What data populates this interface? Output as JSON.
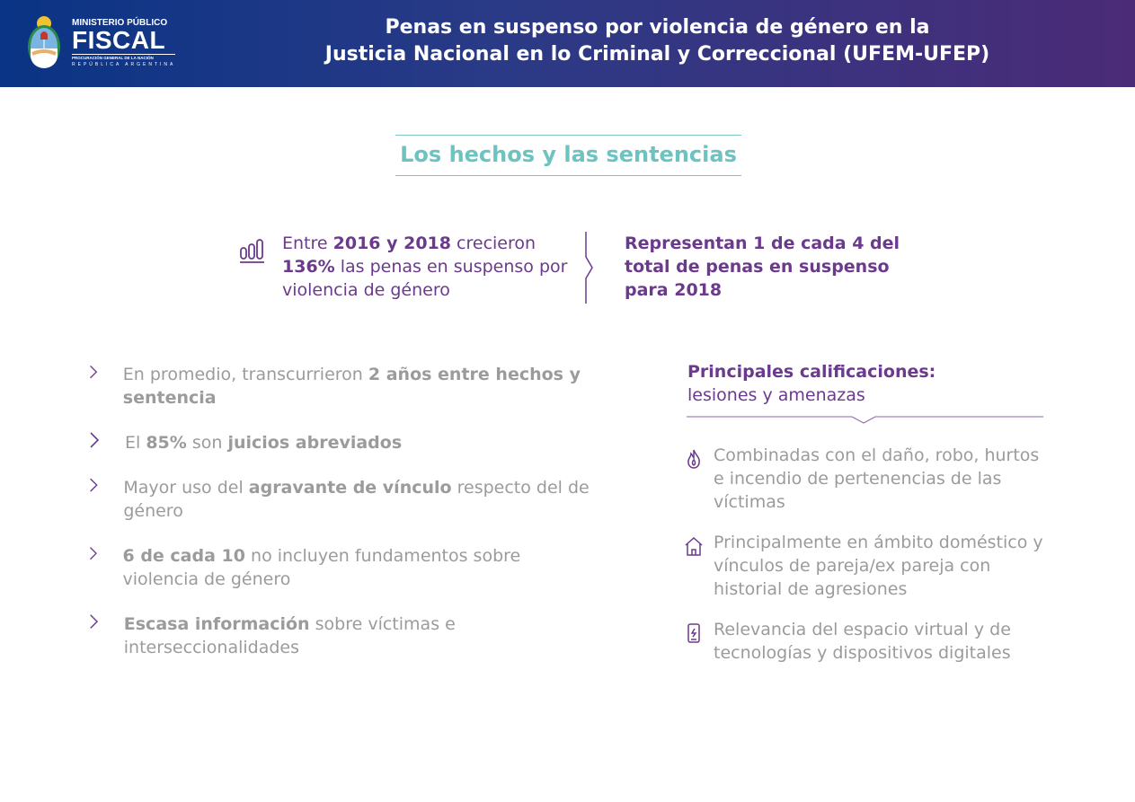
{
  "header": {
    "logo": {
      "line1": "MINISTERIO PÚBLICO",
      "line2": "FISCAL",
      "line3": "PROCURACIÓN GENERAL DE LA NACIÓN",
      "line4": "REPÚBLICA ARGENTINA"
    },
    "title_line1": "Penas en suspenso por violencia de género en la",
    "title_line2": "Justicia Nacional en lo Criminal y Correccional (UFEM-UFEP)"
  },
  "section_title": "Los hechos y las sentencias",
  "stat_left": {
    "icon": "bar-chart-icon",
    "segments": [
      {
        "t": "Entre ",
        "b": false
      },
      {
        "t": "2016 y 2018",
        "b": true
      },
      {
        "t": " crecieron ",
        "b": false
      },
      {
        "t": "136%",
        "b": true
      },
      {
        "t": " las penas en suspenso por violencia de género",
        "b": false
      }
    ]
  },
  "stat_right": "Representan 1 de cada 4 del total de penas en suspenso para 2018",
  "findings": [
    [
      {
        "t": "En promedio, transcurrieron ",
        "b": false
      },
      {
        "t": "2 años entre hechos y sentencia",
        "b": true
      }
    ],
    [
      {
        "t": "El ",
        "b": false
      },
      {
        "t": "85%",
        "b": true
      },
      {
        "t": " son ",
        "b": false
      },
      {
        "t": "juicios abreviados",
        "b": true
      }
    ],
    [
      {
        "t": "Mayor uso del ",
        "b": false
      },
      {
        "t": "agravante de vínculo",
        "b": true
      },
      {
        "t": " respecto del de género",
        "b": false
      }
    ],
    [
      {
        "t": "6 de cada 10",
        "b": true
      },
      {
        "t": " no incluyen fundamentos sobre violencia de género",
        "b": false
      }
    ],
    [
      {
        "t": "Escasa información",
        "b": true
      },
      {
        "t": " sobre víctimas e interseccionalidades",
        "b": false
      }
    ]
  ],
  "calificaciones": {
    "heading": "Principales calificaciones:",
    "subheading": "lesiones y amenazas",
    "items": [
      {
        "icon": "flame-icon",
        "text": "Combinadas con el daño, robo, hurtos e incendio de pertenencias de las víctimas"
      },
      {
        "icon": "house-icon",
        "text": "Principalmente en ámbito doméstico y vínculos de pareja/ex pareja con historial de agresiones"
      },
      {
        "icon": "phone-icon",
        "text": "Relevancia del espacio virtual y de tecnologías y dispositivos digitales"
      }
    ]
  },
  "colors": {
    "purple": "#6b3a8d",
    "teal": "#6cc3c0",
    "gray": "#9b9b9b",
    "header_start": "#0a3485",
    "header_end": "#4b2b77"
  }
}
